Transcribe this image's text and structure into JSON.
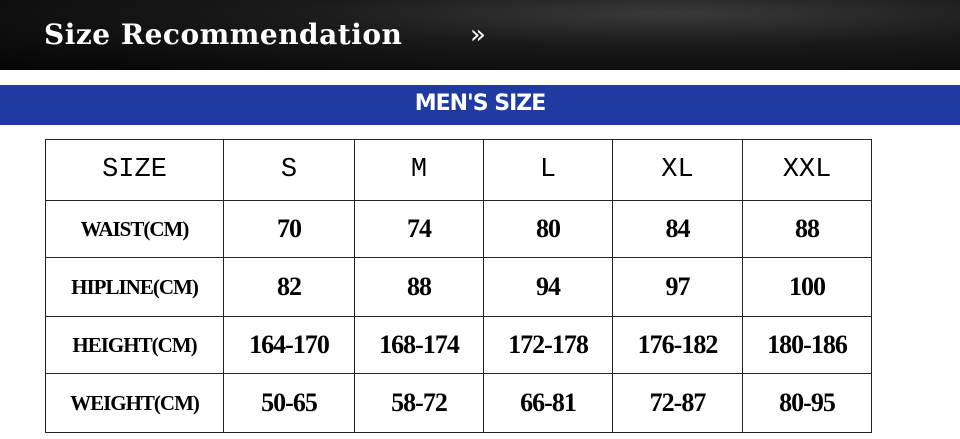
{
  "header": {
    "title": "Size Recommendation",
    "arrow": "»"
  },
  "section": {
    "title": "MEN'S SIZE"
  },
  "table": {
    "columns": [
      "SIZE",
      "S",
      "M",
      "L",
      "XL",
      "XXL"
    ],
    "rows": [
      [
        "WAIST(CM)",
        "70",
        "74",
        "80",
        "84",
        "88"
      ],
      [
        "HIPLINE(CM)",
        "82",
        "88",
        "94",
        "97",
        "100"
      ],
      [
        "HEIGHT(CM)",
        "164-170",
        "168-174",
        "172-178",
        "176-182",
        "180-186"
      ],
      [
        "WEIGHT(CM)",
        "50-65",
        "58-72",
        "66-81",
        "72-87",
        "80-95"
      ]
    ]
  }
}
